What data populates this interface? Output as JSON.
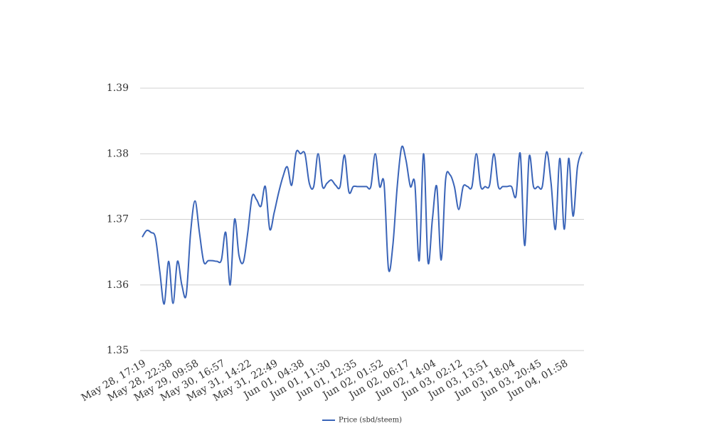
{
  "chart_data": {
    "type": "line",
    "categories": [
      "May 28, 17:19",
      null,
      null,
      null,
      null,
      null,
      "May 28, 22:38",
      null,
      null,
      null,
      null,
      null,
      "May 29, 09:58",
      null,
      null,
      null,
      null,
      null,
      "May 30, 16:57",
      null,
      null,
      null,
      null,
      null,
      "May 31, 14:22",
      null,
      null,
      null,
      null,
      null,
      "May 31, 22:49",
      null,
      null,
      null,
      null,
      null,
      "Jun 01, 04:38",
      null,
      null,
      null,
      null,
      null,
      "Jun 01, 11:30",
      null,
      null,
      null,
      null,
      null,
      "Jun 01, 12:35",
      null,
      null,
      null,
      null,
      null,
      "Jun 02, 01:52",
      null,
      null,
      null,
      null,
      null,
      "Jun 02, 06:17",
      null,
      null,
      null,
      null,
      null,
      "Jun 02, 14:04",
      null,
      null,
      null,
      null,
      null,
      "Jun 03, 02:12",
      null,
      null,
      null,
      null,
      null,
      "Jun 03, 13:51",
      null,
      null,
      null,
      null,
      null,
      "Jun 03, 18:04",
      null,
      null,
      null,
      null,
      null,
      "Jun 03, 20:45",
      null,
      null,
      null,
      null,
      null,
      "Jun 04, 01:58",
      null,
      null,
      null,
      null
    ],
    "series": [
      {
        "name": "Price (sbd/steem)",
        "color": "#3a64b8",
        "values": [
          1.3673,
          1.3683,
          1.368,
          1.3672,
          1.362,
          1.3571,
          1.3636,
          1.3572,
          1.3636,
          1.36,
          1.3585,
          1.368,
          1.3728,
          1.368,
          1.3635,
          1.3637,
          1.3637,
          1.3636,
          1.3638,
          1.368,
          1.36,
          1.37,
          1.3645,
          1.3635,
          1.368,
          1.3735,
          1.373,
          1.372,
          1.375,
          1.3685,
          1.371,
          1.374,
          1.3765,
          1.378,
          1.3752,
          1.3802,
          1.38,
          1.38,
          1.3755,
          1.375,
          1.38,
          1.375,
          1.3755,
          1.376,
          1.3752,
          1.375,
          1.3798,
          1.3742,
          1.375,
          1.375,
          1.375,
          1.375,
          1.375,
          1.38,
          1.375,
          1.3755,
          1.3625,
          1.366,
          1.375,
          1.381,
          1.379,
          1.375,
          1.3755,
          1.3637,
          1.38,
          1.3635,
          1.37,
          1.375,
          1.3638,
          1.376,
          1.3768,
          1.375,
          1.3715,
          1.375,
          1.375,
          1.375,
          1.38,
          1.375,
          1.375,
          1.3752,
          1.38,
          1.375,
          1.375,
          1.375,
          1.375,
          1.3735,
          1.38,
          1.366,
          1.3795,
          1.375,
          1.375,
          1.375,
          1.3803,
          1.3755,
          1.3685,
          1.3793,
          1.3685,
          1.3793,
          1.3705,
          1.378,
          1.3803
        ]
      }
    ],
    "ylim": [
      1.35,
      1.39
    ],
    "yticks": [
      1.35,
      1.36,
      1.37,
      1.38,
      1.39
    ],
    "grid": true,
    "legend": "bottom"
  }
}
